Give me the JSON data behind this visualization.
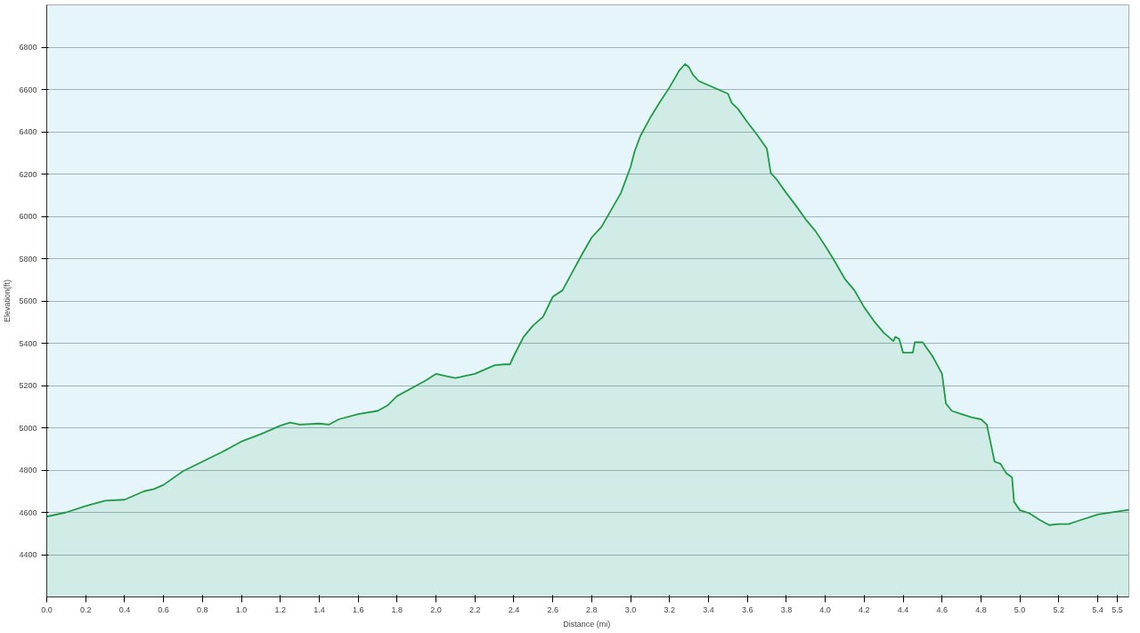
{
  "chart_data": {
    "type": "area",
    "xlabel": "Distance  (mi)",
    "ylabel": "Elevation(ft)",
    "x": [
      0,
      0.1,
      0.2,
      0.3,
      0.4,
      0.5,
      0.55,
      0.6,
      0.7,
      0.8,
      0.9,
      1.0,
      1.1,
      1.2,
      1.25,
      1.3,
      1.4,
      1.45,
      1.5,
      1.6,
      1.7,
      1.75,
      1.8,
      1.9,
      1.95,
      2.0,
      2.05,
      2.1,
      2.2,
      2.3,
      2.35,
      2.38,
      2.4,
      2.45,
      2.5,
      2.55,
      2.6,
      2.65,
      2.7,
      2.75,
      2.8,
      2.85,
      2.9,
      2.95,
      3.0,
      3.02,
      3.05,
      3.1,
      3.15,
      3.2,
      3.25,
      3.28,
      3.3,
      3.32,
      3.35,
      3.4,
      3.45,
      3.5,
      3.52,
      3.55,
      3.6,
      3.65,
      3.7,
      3.72,
      3.75,
      3.8,
      3.85,
      3.9,
      3.95,
      4.0,
      4.05,
      4.1,
      4.15,
      4.2,
      4.25,
      4.3,
      4.35,
      4.36,
      4.38,
      4.4,
      4.45,
      4.46,
      4.5,
      4.55,
      4.58,
      4.6,
      4.62,
      4.65,
      4.7,
      4.75,
      4.8,
      4.83,
      4.87,
      4.9,
      4.93,
      4.96,
      4.97,
      5.0,
      5.05,
      5.1,
      5.15,
      5.2,
      5.25,
      5.3,
      5.4,
      5.56
    ],
    "series": [
      {
        "color": "#1f9a45",
        "values": [
          4580,
          4600,
          4630,
          4655,
          4660,
          4700,
          4710,
          4730,
          4795,
          4840,
          4885,
          4935,
          4970,
          5010,
          5025,
          5015,
          5020,
          5015,
          5040,
          5065,
          5080,
          5105,
          5150,
          5200,
          5225,
          5255,
          5245,
          5235,
          5255,
          5295,
          5300,
          5300,
          5340,
          5430,
          5485,
          5525,
          5620,
          5650,
          5735,
          5820,
          5900,
          5950,
          6030,
          6110,
          6235,
          6305,
          6380,
          6465,
          6540,
          6610,
          6690,
          6720,
          6705,
          6670,
          6640,
          6620,
          6600,
          6580,
          6535,
          6510,
          6445,
          6385,
          6320,
          6205,
          6175,
          6110,
          6050,
          5985,
          5930,
          5860,
          5785,
          5705,
          5650,
          5570,
          5505,
          5450,
          5410,
          5430,
          5420,
          5355,
          5355,
          5405,
          5405,
          5340,
          5290,
          5255,
          5115,
          5080,
          5065,
          5050,
          5040,
          5015,
          4840,
          4830,
          4785,
          4765,
          4650,
          4610,
          4595,
          4565,
          4540,
          4545,
          4545,
          4560,
          4590,
          4612
        ]
      }
    ],
    "xlim": [
      0,
      5.56
    ],
    "ylim": [
      4200,
      7000
    ],
    "xticks": [
      {
        "value": 0,
        "label": "0.0"
      },
      0.2,
      0.4,
      0.6,
      0.8,
      {
        "value": 1,
        "label": "1.0"
      },
      1.2,
      1.4,
      1.6,
      1.8,
      {
        "value": 2,
        "label": "2.0"
      },
      2.2,
      2.4,
      2.6,
      2.8,
      {
        "value": 3,
        "label": "3.0"
      },
      3.2,
      3.4,
      3.6,
      3.8,
      {
        "value": 4,
        "label": "4.0"
      },
      4.2,
      4.4,
      4.6,
      4.8,
      {
        "value": 5,
        "label": "5.0"
      },
      5.2,
      5.4,
      5.5
    ],
    "yticks": [
      4400,
      4600,
      4800,
      5000,
      5200,
      5400,
      5600,
      5800,
      6000,
      6200,
      6400,
      6600,
      6800
    ],
    "grid": "y"
  }
}
